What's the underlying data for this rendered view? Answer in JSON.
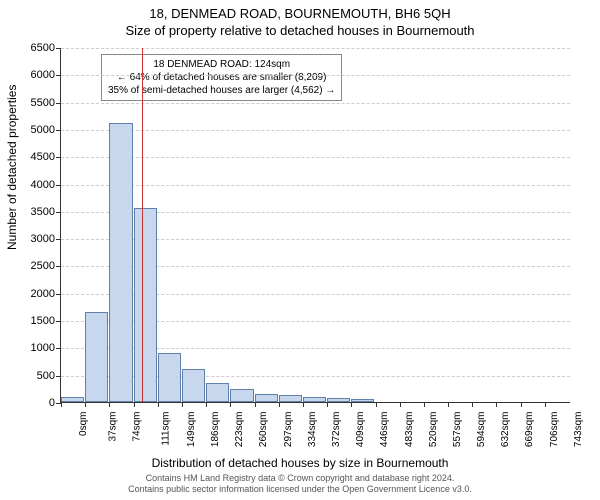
{
  "title_main": "18, DENMEAD ROAD, BOURNEMOUTH, BH6 5QH",
  "title_sub": "Size of property relative to detached houses in Bournemouth",
  "y_axis_label": "Number of detached properties",
  "x_axis_label": "Distribution of detached houses by size in Bournemouth",
  "attribution_line1": "Contains HM Land Registry data © Crown copyright and database right 2024.",
  "attribution_line2": "Contains public sector information licensed under the Open Government Licence v3.0.",
  "annotation": {
    "line1": "18 DENMEAD ROAD: 124sqm",
    "line2": "← 64% of detached houses are smaller (8,209)",
    "line3": "35% of semi-detached houses are larger (4,562) →"
  },
  "chart": {
    "type": "histogram",
    "ylim": [
      0,
      6500
    ],
    "ytick_step": 500,
    "xlim_sqm": [
      0,
      780
    ],
    "bin_width_sqm": 37,
    "reference_sqm": 124,
    "bar_fill": "#c7d7ee",
    "bar_stroke": "#6080a8",
    "ref_line_color": "#cc3333",
    "grid_color": "#cccccc",
    "background": "#ffffff",
    "x_labels": [
      "0sqm",
      "37sqm",
      "74sqm",
      "111sqm",
      "149sqm",
      "186sqm",
      "223sqm",
      "260sqm",
      "297sqm",
      "334sqm",
      "372sqm",
      "409sqm",
      "446sqm",
      "483sqm",
      "520sqm",
      "557sqm",
      "594sqm",
      "632sqm",
      "669sqm",
      "706sqm",
      "743sqm"
    ],
    "values": [
      90,
      1650,
      5100,
      3550,
      900,
      600,
      340,
      245,
      150,
      120,
      90,
      75,
      50,
      0,
      0,
      0,
      0,
      0,
      0,
      0,
      0
    ]
  }
}
